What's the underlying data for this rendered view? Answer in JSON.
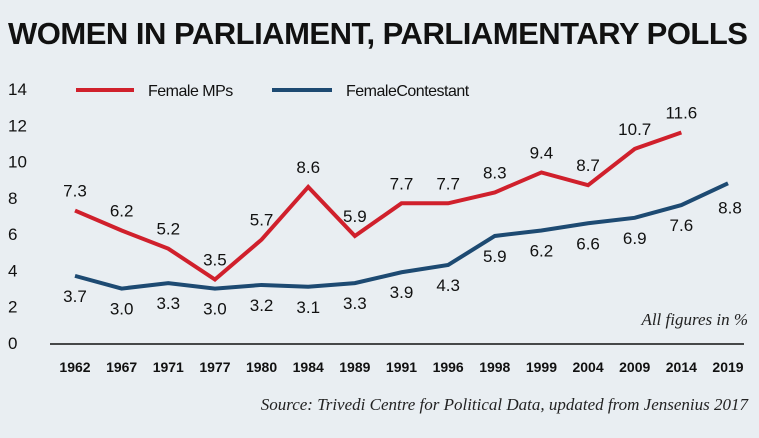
{
  "chart_data": {
    "type": "line",
    "title": "WOMEN IN PARLIAMENT, PARLIAMENTARY POLLS",
    "categories": [
      "1962",
      "1967",
      "1971",
      "1977",
      "1980",
      "1984",
      "1989",
      "1991",
      "1996",
      "1998",
      "1999",
      "2004",
      "2009",
      "2014",
      "2019"
    ],
    "series": [
      {
        "name": "Female MPs",
        "color": "#d0202c",
        "values": [
          7.3,
          6.2,
          5.2,
          3.5,
          5.7,
          8.6,
          5.9,
          7.7,
          7.7,
          8.3,
          9.4,
          8.7,
          10.7,
          11.6,
          null
        ]
      },
      {
        "name": "FemaleContestant",
        "color": "#1d4a72",
        "values": [
          3.7,
          3.0,
          3.3,
          3.0,
          3.2,
          3.1,
          3.3,
          3.9,
          4.3,
          5.9,
          6.2,
          6.6,
          6.9,
          7.6,
          8.8
        ]
      }
    ],
    "yticks": [
      "0",
      "2",
      "4",
      "6",
      "8",
      "10",
      "12",
      "14"
    ],
    "ylim": [
      0,
      14
    ],
    "grid": false,
    "legend": "top-left",
    "note": "All figures in %",
    "source": "Source:  Trivedi Centre for Political Data, updated from Jensenius 2017"
  }
}
